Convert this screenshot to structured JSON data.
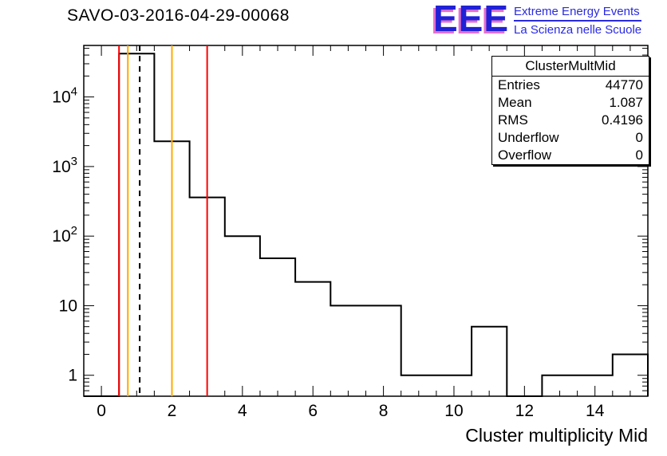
{
  "logo": {
    "acronym": "EEE",
    "line1": "Extreme Energy Events",
    "line2": "La Scienza nelle Scuole",
    "color_blue": "#2a2ae0",
    "color_pink": "#e570cf"
  },
  "stats": {
    "header": "ClusterMultMid",
    "rows": [
      {
        "label": "Entries",
        "value": "44770"
      },
      {
        "label": "Mean",
        "value": "1.087"
      },
      {
        "label": "RMS",
        "value": "0.4196"
      },
      {
        "label": "Underflow",
        "value": "0"
      },
      {
        "label": "Overflow",
        "value": "0"
      }
    ]
  },
  "chart_data": {
    "type": "histogram",
    "title": "SAVO-03-2016-04-29-00068",
    "xlabel": "Cluster multiplicity Mid",
    "ylabel": "",
    "y_scale": "log",
    "grid": false,
    "legend": false,
    "x_range": [
      -0.5,
      15.5
    ],
    "y_range": [
      0.5,
      55000
    ],
    "bin_width": 1,
    "bin_centers": [
      0,
      1,
      2,
      3,
      4,
      5,
      6,
      7,
      8,
      9,
      10,
      11,
      12,
      13,
      14,
      15
    ],
    "counts": [
      0,
      41900,
      2300,
      360,
      100,
      48,
      22,
      10,
      10,
      1,
      1,
      5,
      0,
      1,
      1,
      2
    ],
    "x_major_ticks": [
      0,
      2,
      4,
      6,
      8,
      10,
      12,
      14
    ],
    "x_minor_step": 0.5,
    "y_major_ticks": [
      1,
      10,
      100,
      1000,
      10000
    ],
    "y_tick_labels": [
      "1",
      "10",
      "10^2",
      "10^3",
      "10^4"
    ],
    "line_color": "#000000",
    "marker_lines": [
      {
        "x": 0.5,
        "color": "#ff0000",
        "style": "solid"
      },
      {
        "x": 0.75,
        "color": "#ffaa00",
        "style": "solid"
      },
      {
        "x": 1.087,
        "color": "#000000",
        "style": "dashed"
      },
      {
        "x": 2.0,
        "color": "#ffaa00",
        "style": "solid"
      },
      {
        "x": 3.0,
        "color": "#ff0000",
        "style": "solid"
      }
    ]
  }
}
